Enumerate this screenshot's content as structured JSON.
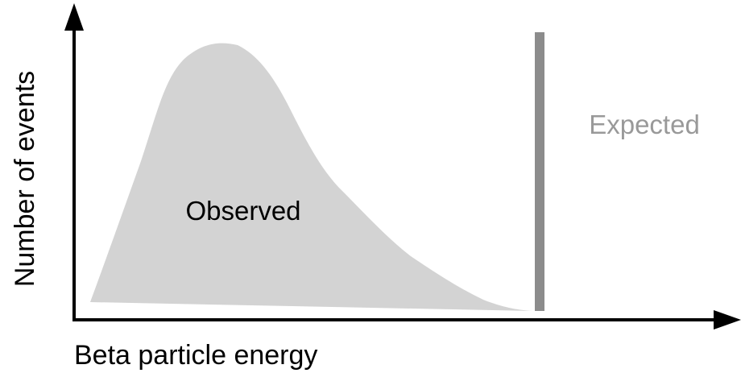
{
  "diagram": {
    "y_axis_label": "Number of events",
    "x_axis_label": "Beta particle energy",
    "observed_label": "Observed",
    "expected_label": "Expected"
  }
}
